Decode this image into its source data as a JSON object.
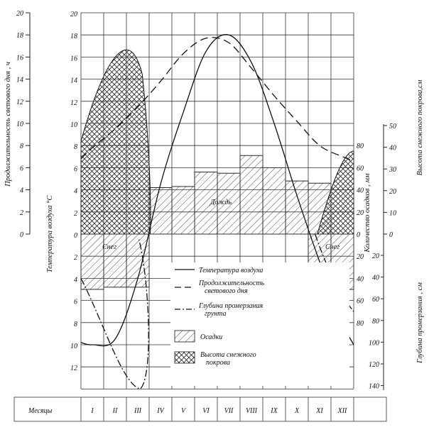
{
  "chart_data": {
    "type": "climograph",
    "months": [
      "I",
      "II",
      "III",
      "IV",
      "V",
      "VI",
      "VII",
      "VIII",
      "IX",
      "X",
      "XI",
      "XII"
    ],
    "months_header": "Месяцы",
    "left_axes": {
      "daylight_ticks": [
        0,
        2,
        4,
        6,
        8,
        10,
        12,
        14,
        16,
        18,
        20
      ],
      "daylight_label": "Продолжительность светового дня , ч",
      "temperature_ticks": [
        20,
        18,
        16,
        14,
        12,
        10,
        8,
        6,
        4,
        2,
        0,
        2,
        4,
        6,
        8,
        10,
        12
      ],
      "temperature_label": "Температура воздуха °С"
    },
    "right_axes": {
      "precip_ticks": [
        80,
        60,
        40,
        20,
        0,
        20,
        40,
        60,
        80
      ],
      "precip_label": "Количество осадков , мм",
      "snow_ticks": [
        50,
        40,
        30,
        20,
        10,
        0
      ],
      "snow_label": "Высота снежного покрова,см",
      "frost_ticks": [
        20,
        40,
        60,
        80,
        100,
        120,
        140
      ],
      "frost_label": "Глубина промерзания , см"
    },
    "series": {
      "air_temperature_c": [
        -10.0,
        -9.5,
        -4.0,
        4.5,
        11.0,
        16.5,
        18.0,
        15.5,
        10.0,
        3.5,
        -2.5,
        -8.0
      ],
      "daylight_hours": [
        7.8,
        9.5,
        11.5,
        13.8,
        16.3,
        17.7,
        17.3,
        15.0,
        12.5,
        10.2,
        8.0,
        7.0
      ],
      "frost_depth_cm": [
        40,
        80,
        135,
        140
      ],
      "precipitation_rain_mm": [
        42,
        43,
        56,
        55,
        71,
        60,
        48,
        46
      ],
      "precipitation_snow_mm": [
        50,
        48,
        48,
        42,
        50
      ],
      "snow_cover_cm": [
        28,
        45,
        48,
        33
      ]
    },
    "legend": [
      {
        "key": "temp",
        "label": "Температура воздуха"
      },
      {
        "key": "daylight",
        "label": "Продолжительность светового дня"
      },
      {
        "key": "frost",
        "label": "Глубина промерзания грунта"
      },
      {
        "key": "precip",
        "label": "Осадки"
      },
      {
        "key": "snow",
        "label": "Высота снежного покрова"
      }
    ],
    "annotations": {
      "rain": "Дождь",
      "snow": "Снег"
    }
  }
}
